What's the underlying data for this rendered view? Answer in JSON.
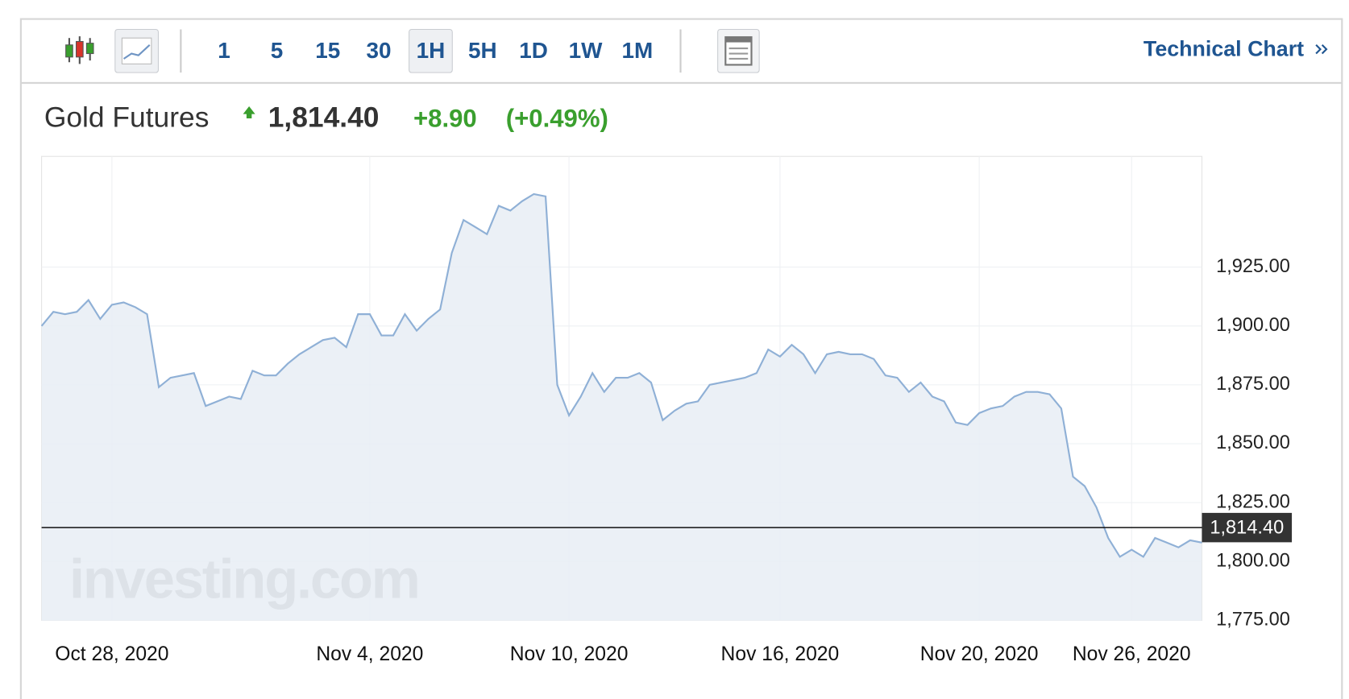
{
  "toolbar": {
    "intervals": [
      "1",
      "5",
      "15",
      "30",
      "1H",
      "5H",
      "1D",
      "1W",
      "1M"
    ],
    "active": 4,
    "link": "Technical Chart"
  },
  "header": {
    "name": "Gold Futures",
    "price": "1,814.40",
    "change": "+8.90",
    "change_pct": "(+0.49%)"
  },
  "watermark": "investing.com",
  "chart_data": {
    "type": "line",
    "categories": [
      null,
      null,
      null,
      null,
      null,
      null,
      "Oct 28, 2020",
      null,
      null,
      null,
      null,
      null,
      null,
      null,
      null,
      null,
      null,
      null,
      null,
      null,
      null,
      null,
      null,
      null,
      null,
      null,
      null,
      null,
      "Nov 4, 2020",
      null,
      null,
      null,
      null,
      null,
      null,
      null,
      null,
      null,
      null,
      null,
      null,
      null,
      null,
      null,
      null,
      "Nov 10, 2020",
      null,
      null,
      null,
      null,
      null,
      null,
      null,
      null,
      null,
      null,
      null,
      null,
      null,
      null,
      null,
      null,
      null,
      "Nov 16, 2020",
      null,
      null,
      null,
      null,
      null,
      null,
      null,
      null,
      null,
      null,
      null,
      null,
      null,
      null,
      null,
      null,
      "Nov 20, 2020",
      null,
      null,
      null,
      null,
      null,
      null,
      null,
      null,
      null,
      null,
      null,
      null,
      "Nov 26, 2020",
      null,
      null,
      null,
      null,
      null,
      null
    ],
    "values": [
      1900,
      1906,
      1905,
      1906,
      1911,
      1903,
      1909,
      1910,
      1908,
      1905,
      1874,
      1878,
      1879,
      1880,
      1866,
      1868,
      1870,
      1869,
      1881,
      1879,
      1879,
      1884,
      1888,
      1891,
      1894,
      1895,
      1891,
      1905,
      1905,
      1896,
      1896,
      1905,
      1898,
      1903,
      1907,
      1931,
      1945,
      1942,
      1939,
      1951,
      1949,
      1953,
      1956,
      1955,
      1875,
      1862,
      1870,
      1880,
      1872,
      1878,
      1878,
      1880,
      1876,
      1860,
      1864,
      1867,
      1868,
      1875,
      1876,
      1877,
      1878,
      1880,
      1890,
      1887,
      1892,
      1888,
      1880,
      1888,
      1889,
      1888,
      1888,
      1886,
      1879,
      1878,
      1872,
      1876,
      1870,
      1868,
      1859,
      1858,
      1863,
      1865,
      1866,
      1870,
      1872,
      1872,
      1871,
      1865,
      1836,
      1832,
      1823,
      1810,
      1802,
      1805,
      1802,
      1810,
      1808,
      1806,
      1809,
      1808
    ],
    "color": "#8fb0d6",
    "fill": "#e8edf5",
    "ylim": [
      1775,
      1972
    ],
    "yticks": [
      {
        "value": 1775,
        "label": "1,775.00"
      },
      {
        "value": 1800,
        "label": "1,800.00"
      },
      {
        "value": 1825,
        "label": "1,825.00"
      },
      {
        "value": 1850,
        "label": "1,850.00"
      },
      {
        "value": 1875,
        "label": "1,875.00"
      },
      {
        "value": 1900,
        "label": "1,900.00"
      },
      {
        "value": 1925,
        "label": "1,925.00"
      }
    ],
    "grid": true,
    "last": {
      "value": 1814.4,
      "label": "1,814.40"
    }
  }
}
